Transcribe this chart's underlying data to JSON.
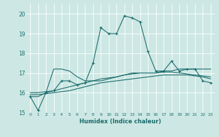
{
  "xlabel": "Humidex (Indice chaleur)",
  "xlim": [
    -0.5,
    23.5
  ],
  "ylim": [
    15,
    20.5
  ],
  "yticks": [
    15,
    16,
    17,
    18,
    19,
    20
  ],
  "xticks": [
    0,
    1,
    2,
    3,
    4,
    5,
    6,
    7,
    8,
    9,
    10,
    11,
    12,
    13,
    14,
    15,
    16,
    17,
    18,
    19,
    20,
    21,
    22,
    23
  ],
  "bg_color": "#cde8e4",
  "line_color": "#1a6b6b",
  "grid_color": "#ffffff",
  "series1": [
    15.8,
    15.1,
    16.0,
    16.1,
    16.6,
    16.6,
    16.4,
    16.5,
    17.5,
    19.3,
    19.0,
    19.0,
    19.9,
    19.8,
    19.6,
    18.1,
    17.1,
    17.1,
    17.6,
    17.1,
    17.2,
    17.2,
    16.6,
    16.5
  ],
  "series2": [
    15.8,
    15.8,
    16.0,
    17.2,
    17.2,
    17.1,
    16.8,
    16.6,
    16.6,
    16.6,
    16.7,
    16.8,
    16.9,
    17.0,
    17.0,
    17.0,
    17.0,
    17.1,
    17.1,
    17.2,
    17.2,
    17.2,
    17.2,
    17.2
  ],
  "series3": [
    16.0,
    16.0,
    16.05,
    16.1,
    16.2,
    16.3,
    16.4,
    16.5,
    16.6,
    16.7,
    16.75,
    16.8,
    16.9,
    16.95,
    17.0,
    17.0,
    17.0,
    17.05,
    17.05,
    17.0,
    16.95,
    16.9,
    16.85,
    16.8
  ],
  "series4": [
    15.9,
    15.9,
    15.95,
    16.0,
    16.05,
    16.1,
    16.2,
    16.3,
    16.4,
    16.5,
    16.55,
    16.6,
    16.65,
    16.7,
    16.75,
    16.8,
    16.85,
    16.9,
    16.9,
    16.9,
    16.9,
    16.85,
    16.8,
    16.7
  ]
}
